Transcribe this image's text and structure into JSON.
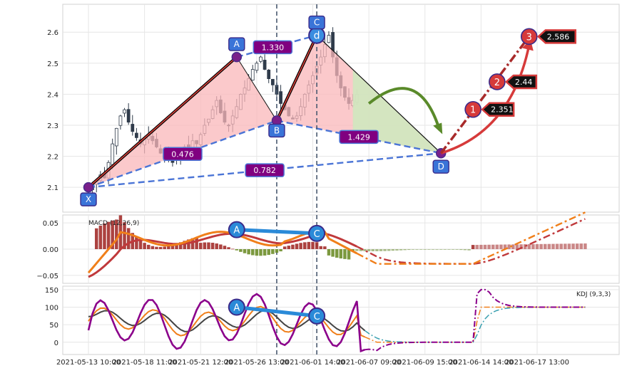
{
  "chart_data": {
    "type": "candlestick",
    "x_tick_labels": [
      "2021-05-13 10:00",
      "2021-05-18 11:00",
      "2021-05-21 12:00",
      "2021-05-26 13:00",
      "2021-06-01 14:00",
      "2021-06-07 09:00",
      "2021-06-09 15:00",
      "2021-06-14 14:00",
      "2021-06-17 13:00"
    ],
    "x_tick_index": [
      0,
      14,
      28,
      42,
      56,
      70,
      84,
      98,
      112
    ],
    "price_panel": {
      "yticks": [
        "2.1",
        "2.2",
        "2.3",
        "2.4",
        "2.5",
        "2.6"
      ],
      "ylim": [
        2.02,
        2.69
      ],
      "close": [
        2.1,
        2.11,
        2.12,
        2.14,
        2.13,
        2.18,
        2.24,
        2.29,
        2.33,
        2.35,
        2.31,
        2.28,
        2.26,
        2.24,
        2.26,
        2.27,
        2.25,
        2.23,
        2.21,
        2.2,
        2.19,
        2.18,
        2.2,
        2.22,
        2.23,
        2.22,
        2.25,
        2.24,
        2.27,
        2.3,
        2.32,
        2.35,
        2.38,
        2.34,
        2.31,
        2.3,
        2.33,
        2.36,
        2.4,
        2.42,
        2.45,
        2.48,
        2.5,
        2.52,
        2.48,
        2.45,
        2.43,
        2.4,
        2.37,
        2.35,
        2.33,
        2.32,
        2.33,
        2.36,
        2.4,
        2.43,
        2.46,
        2.49,
        2.52,
        2.56,
        2.59,
        2.52,
        2.46,
        2.42,
        2.39,
        2.37,
        2.38,
        2.4
      ],
      "pattern": {
        "points": [
          {
            "label": "X",
            "idx": 0,
            "price": 2.1
          },
          {
            "label": "A",
            "idx": 37,
            "price": 2.52
          },
          {
            "label": "B",
            "idx": 47,
            "price": 2.315
          },
          {
            "label": "C",
            "idx": 57,
            "price": 2.59
          },
          {
            "label": "D",
            "idx": 88,
            "price": 2.21
          }
        ],
        "ratios": [
          {
            "label": "0.476",
            "between": "X-B"
          },
          {
            "label": "1.330",
            "between": "A-C"
          },
          {
            "label": "1.429",
            "between": "B-D"
          },
          {
            "label": "0.782",
            "between": "X-D"
          }
        ],
        "c_marker_text": "d",
        "targets": [
          {
            "label": "1",
            "price": 2.351
          },
          {
            "label": "2",
            "price": 2.44
          },
          {
            "label": "3",
            "price": 2.586
          }
        ],
        "target_value_texts": [
          "2.351",
          "2.44",
          "2.586"
        ]
      },
      "vlines_idx": [
        47,
        57
      ]
    },
    "macd_panel": {
      "title": "MACD (12,26,9)",
      "yticks": [
        "0.05",
        "0.00",
        "−0.05"
      ],
      "ylim": [
        -0.065,
        0.065
      ],
      "marker_labels": [
        "A",
        "C"
      ]
    },
    "kdj_panel": {
      "title": "KDJ (9,3,3)",
      "yticks": [
        "150",
        "100",
        "50",
        "0"
      ],
      "ylim": [
        -35,
        160
      ],
      "marker_labels": [
        "A",
        "C"
      ]
    },
    "colors": {
      "up_candle": "#ffffff",
      "down_candle": "#2f3b4a",
      "pattern_line": "#d9403a",
      "ratio_dash": "#4a74d6",
      "ratio_badge": "#800080",
      "point_badge": "#3a74d8",
      "triangle_fill": "#f9b7b9",
      "green_fill": "#cfe8bf",
      "target_circle": "#d63a3a",
      "macd_line": "#f07f1a",
      "signal_line": "#c0393b",
      "hist_pos": "#a32d2b",
      "hist_neg": "#6e8e2a",
      "kdj_k": "#f07f1a",
      "kdj_d": "#444444",
      "kdj_j": "#8b008b",
      "arrow_green": "#5a8a2a"
    },
    "grid": true
  }
}
